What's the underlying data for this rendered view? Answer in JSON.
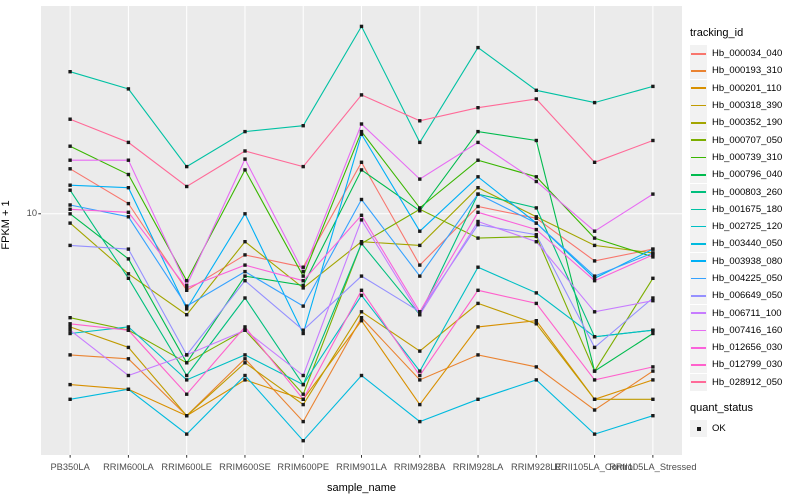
{
  "figure": {
    "background": "#ffffff",
    "panel_background": "#ebebeb",
    "grid_color": "#ffffff",
    "tick_mark_color": "#333333",
    "tick_text_color": "#4d4d4d",
    "point_color": "#1a1a1a"
  },
  "axes": {
    "x_title": "sample_name",
    "y_title": "FPKM + 1",
    "y_tick_label": "10"
  },
  "legend": {
    "tracking_title": "tracking_id",
    "quant_title": "quant_status",
    "quant_label": "OK"
  },
  "chart_data": {
    "type": "line",
    "title": "",
    "xlabel": "sample_name",
    "ylabel": "FPKM + 1",
    "y_scale": "log10",
    "y_ticks": [
      10
    ],
    "ylim": [
      2,
      40
    ],
    "grid": "major",
    "legend_position": "right",
    "point_marker": "filled-square",
    "quant_status": "OK",
    "categories": [
      "PB350LA",
      "RRIM600LA",
      "RRIM600LE",
      "RRIM600SE",
      "RRIM600PE",
      "RRIM901LA",
      "RRIM928BA",
      "RRIM928LA",
      "RRIM928LE",
      "RRII105LA_Control",
      "RRII105LA_Stressed"
    ],
    "series": [
      {
        "name": "Hb_000034_040",
        "color": "#F8766D",
        "values": [
          13.5,
          10.7,
          6.0,
          7.6,
          7.0,
          14.1,
          7.1,
          10.5,
          9.7,
          7.3,
          7.9
        ]
      },
      {
        "name": "Hb_000193_310",
        "color": "#EA8331",
        "values": [
          3.9,
          3.8,
          2.6,
          3.8,
          2.5,
          5.0,
          3.3,
          3.9,
          3.6,
          2.7,
          3.5
        ]
      },
      {
        "name": "Hb_000201_110",
        "color": "#D89000",
        "values": [
          3.2,
          3.1,
          2.6,
          3.3,
          2.9,
          4.9,
          2.8,
          4.7,
          4.9,
          2.9,
          3.3
        ]
      },
      {
        "name": "Hb_000318_390",
        "color": "#C09B00",
        "values": [
          4.7,
          4.1,
          2.6,
          3.7,
          2.8,
          5.2,
          4.0,
          5.5,
          4.8,
          2.9,
          2.9
        ]
      },
      {
        "name": "Hb_000352_190",
        "color": "#A3A500",
        "values": [
          9.4,
          6.7,
          5.1,
          8.3,
          6.1,
          8.3,
          8.1,
          11.9,
          9.8,
          8.1,
          7.7
        ]
      },
      {
        "name": "Hb_000707_050",
        "color": "#7CAE00",
        "values": [
          5.0,
          4.6,
          3.7,
          4.6,
          3.0,
          8.2,
          10.3,
          8.5,
          8.6,
          3.5,
          6.5
        ]
      },
      {
        "name": "Hb_000739_310",
        "color": "#39B600",
        "values": [
          15.7,
          13.0,
          6.4,
          13.4,
          6.6,
          17.3,
          10.4,
          14.3,
          12.8,
          8.5,
          7.5
        ]
      },
      {
        "name": "Hb_000796_040",
        "color": "#00BB4E",
        "values": [
          10.0,
          7.4,
          3.7,
          6.6,
          6.2,
          13.4,
          10.2,
          17.3,
          16.3,
          3.5,
          4.5
        ]
      },
      {
        "name": "Hb_000803_260",
        "color": "#00BF7D",
        "values": [
          11.7,
          6.5,
          3.4,
          5.7,
          3.2,
          8.2,
          5.1,
          11.4,
          10.4,
          4.4,
          4.6
        ]
      },
      {
        "name": "Hb_001675_180",
        "color": "#00C1A3",
        "values": [
          25.8,
          23.0,
          13.7,
          17.3,
          18.0,
          34.9,
          16.1,
          30.3,
          22.8,
          21.0,
          23.4
        ]
      },
      {
        "name": "Hb_002725_120",
        "color": "#00BFC4",
        "values": [
          4.5,
          4.7,
          3.3,
          3.9,
          3.2,
          5.8,
          3.5,
          7.0,
          5.9,
          4.4,
          4.6
        ]
      },
      {
        "name": "Hb_003440_050",
        "color": "#00BADE",
        "values": [
          2.9,
          3.1,
          2.3,
          3.4,
          2.2,
          3.4,
          2.5,
          2.9,
          3.3,
          2.3,
          2.6
        ]
      },
      {
        "name": "Hb_003938_080",
        "color": "#00B0F6",
        "values": [
          12.1,
          11.9,
          5.3,
          10.0,
          4.5,
          17.0,
          8.9,
          12.8,
          9.4,
          6.5,
          7.9
        ]
      },
      {
        "name": "Hb_004225_050",
        "color": "#35A2FF",
        "values": [
          10.6,
          9.8,
          5.4,
          6.8,
          5.4,
          11.0,
          6.6,
          11.4,
          9.4,
          6.6,
          7.7
        ]
      },
      {
        "name": "Hb_006649_050",
        "color": "#9590FF",
        "values": [
          8.1,
          7.9,
          3.9,
          6.4,
          4.6,
          6.6,
          5.2,
          9.3,
          8.7,
          4.1,
          5.7
        ]
      },
      {
        "name": "Hb_006711_100",
        "color": "#C77CFF",
        "values": [
          4.6,
          3.4,
          3.9,
          4.6,
          3.4,
          9.6,
          5.1,
          9.5,
          8.3,
          5.2,
          5.6
        ]
      },
      {
        "name": "Hb_007416_160",
        "color": "#E76BF3",
        "values": [
          14.3,
          14.3,
          6.2,
          14.4,
          6.8,
          18.2,
          12.6,
          16.1,
          12.4,
          8.9,
          11.4
        ]
      },
      {
        "name": "Hb_012656_030",
        "color": "#FA62DB",
        "values": [
          10.3,
          10.1,
          6.1,
          7.1,
          6.4,
          9.9,
          5.2,
          10.1,
          9.0,
          6.4,
          7.6
        ]
      },
      {
        "name": "Hb_012799_030",
        "color": "#FF61CC",
        "values": [
          4.8,
          4.6,
          3.0,
          4.7,
          2.9,
          6.0,
          3.4,
          6.0,
          5.5,
          3.3,
          3.6
        ]
      },
      {
        "name": "Hb_028912_050",
        "color": "#FF6A98",
        "values": [
          18.8,
          16.1,
          12.0,
          15.2,
          13.7,
          22.1,
          18.6,
          20.3,
          21.5,
          14.1,
          16.3
        ]
      }
    ]
  }
}
